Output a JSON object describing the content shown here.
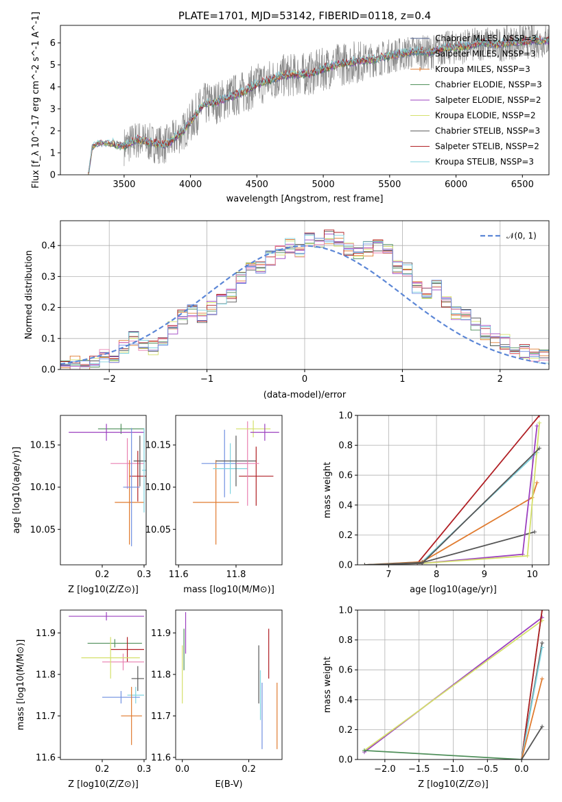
{
  "colors": [
    "#4a5b8a",
    "#5b86a6",
    "#e07b2f",
    "#4f8f5a",
    "#9b3fbf",
    "#d4e06a",
    "#555555",
    "#b01f24",
    "#7fd3df",
    "#e87fb0",
    "#6f8fe0",
    "#8fa58f"
  ],
  "chart_data": [
    {
      "type": "line",
      "title": "PLATE=1701, MJD=53142, FIBERID=0118, z=0.4",
      "xlabel": "wavelength [Angstrom, rest frame]",
      "ylabel": "Flux [f_λ 10^-17 erg cm^-2 s^-1 A^-1]",
      "xlim": [
        3020,
        6700
      ],
      "ylim": [
        0,
        6.8
      ],
      "xticks": [
        3500,
        4000,
        4500,
        5000,
        5500,
        6000,
        6500
      ],
      "yticks": [
        0,
        1,
        2,
        3,
        4,
        5,
        6
      ],
      "legend_position": "right",
      "legend": [
        {
          "name": "Chabrier MILES, N_SSP=3",
          "color": "#4a5b8a"
        },
        {
          "name": "Salpeter MILES, N_SSP=3",
          "color": "#5b86a6"
        },
        {
          "name": "Kroupa MILES, N_SSP=3",
          "color": "#e07b2f"
        },
        {
          "name": "Chabrier ELODIE, N_SSP=3",
          "color": "#4f8f5a"
        },
        {
          "name": "Salpeter ELODIE, N_SSP=2",
          "color": "#9b3fbf"
        },
        {
          "name": "Kroupa ELODIE, N_SSP=2",
          "color": "#d4e06a"
        },
        {
          "name": "Chabrier STELIB, N_SSP=3",
          "color": "#555555"
        },
        {
          "name": "Salpeter STELIB, N_SSP=2",
          "color": "#b01f24"
        },
        {
          "name": "Kroupa STELIB, N_SSP=3",
          "color": "#7fd3df"
        }
      ],
      "model_continuum": {
        "x": [
          3230,
          3260,
          3300,
          3400,
          3500,
          3600,
          3700,
          3800,
          3850,
          3950,
          4000,
          4100,
          4200,
          4300,
          4400,
          4500,
          4600,
          4700,
          4800,
          4900,
          5000,
          5100,
          5200,
          5300,
          5400,
          5500,
          5600,
          5700,
          5800,
          5900,
          6000,
          6100,
          6200,
          6300,
          6400,
          6500,
          6700
        ],
        "y": [
          0,
          1.25,
          1.45,
          1.42,
          1.3,
          1.6,
          1.45,
          1.35,
          1.5,
          2.0,
          2.4,
          3.2,
          3.3,
          3.55,
          3.75,
          4.1,
          4.3,
          4.5,
          4.55,
          4.6,
          4.8,
          5.0,
          5.1,
          5.2,
          5.25,
          5.4,
          5.5,
          5.6,
          5.55,
          5.75,
          5.8,
          5.85,
          6.0,
          5.9,
          6.0,
          6.05,
          6.1
        ]
      },
      "observed_data_note": "noisy observed spectrum shown in grey from 3500 to 6700 Å"
    },
    {
      "type": "line",
      "xlabel": "(data-model)/error",
      "ylabel": "Normed distribution",
      "xlim": [
        -2.5,
        2.5
      ],
      "ylim": [
        0,
        0.48
      ],
      "xticks": [
        -2,
        -1,
        0,
        1,
        2
      ],
      "yticks": [
        0.0,
        0.1,
        0.2,
        0.3,
        0.4
      ],
      "grid": true,
      "legend": [
        {
          "name": "𝒩(0, 1)",
          "style": "dashed",
          "color": "#5b86d6"
        }
      ],
      "histogram_bins": [
        -2.5,
        -2.4,
        -2.3,
        -2.2,
        -2.1,
        -2.0,
        -1.9,
        -1.8,
        -1.7,
        -1.6,
        -1.5,
        -1.4,
        -1.3,
        -1.2,
        -1.1,
        -1.0,
        -0.9,
        -0.8,
        -0.7,
        -0.6,
        -0.5,
        -0.4,
        -0.3,
        -0.2,
        -0.1,
        0.0,
        0.1,
        0.2,
        0.3,
        0.4,
        0.5,
        0.6,
        0.7,
        0.8,
        0.9,
        1.0,
        1.1,
        1.2,
        1.3,
        1.4,
        1.5,
        1.6,
        1.7,
        1.8,
        1.9,
        2.0,
        2.1,
        2.2,
        2.3,
        2.4,
        2.5
      ],
      "histogram_mean_heights": [
        0.015,
        0.02,
        0.018,
        0.03,
        0.04,
        0.045,
        0.07,
        0.1,
        0.08,
        0.07,
        0.095,
        0.13,
        0.17,
        0.19,
        0.175,
        0.2,
        0.22,
        0.24,
        0.3,
        0.34,
        0.33,
        0.36,
        0.38,
        0.4,
        0.38,
        0.42,
        0.41,
        0.43,
        0.42,
        0.39,
        0.38,
        0.39,
        0.4,
        0.38,
        0.33,
        0.32,
        0.27,
        0.25,
        0.27,
        0.22,
        0.18,
        0.17,
        0.15,
        0.12,
        0.1,
        0.09,
        0.07,
        0.06,
        0.05,
        0.04
      ]
    },
    {
      "type": "scatter",
      "xlabel": "Z [log10(Z/Z⊙)]",
      "ylabel": "age  [log10(age/yr)]",
      "xlim": [
        0.1,
        0.305
      ],
      "ylim": [
        10.008,
        10.185
      ],
      "xticks": [
        0.2,
        0.3
      ],
      "yticks": [
        10.05,
        10.1,
        10.15
      ],
      "errorbars": [
        {
          "x": 0.245,
          "xerr": 0.055,
          "y": 10.169,
          "yerr": 0.006,
          "color": "#4f8f5a"
        },
        {
          "x": 0.21,
          "xerr": 0.09,
          "y": 10.165,
          "yerr": 0.01,
          "color": "#9b3fbf"
        },
        {
          "x": 0.26,
          "xerr": 0.04,
          "y": 10.128,
          "yerr": 0.03,
          "color": "#e87fb0"
        },
        {
          "x": 0.29,
          "xerr": 0.015,
          "y": 10.131,
          "yerr": 0.03,
          "color": "#555555"
        },
        {
          "x": 0.285,
          "xerr": 0.02,
          "y": 10.113,
          "yerr": 0.03,
          "color": "#b01f24"
        },
        {
          "x": 0.265,
          "xerr": 0.035,
          "y": 10.082,
          "yerr": 0.05,
          "color": "#e07b2f"
        },
        {
          "x": 0.27,
          "xerr": 0.02,
          "y": 10.1,
          "yerr": 0.07,
          "color": "#6f8fe0"
        },
        {
          "x": 0.3,
          "xerr": 0.005,
          "y": 10.12,
          "yerr": 0.05,
          "color": "#7fd3df"
        }
      ]
    },
    {
      "type": "scatter",
      "xlabel": "mass [log10(M/M⊙)]",
      "xlim": [
        11.59,
        11.96
      ],
      "ylim": [
        10.008,
        10.185
      ],
      "xticks": [
        11.6,
        11.8
      ],
      "yticks": [
        10.05,
        10.1,
        10.15
      ],
      "errorbars": [
        {
          "x": 11.73,
          "xerr": 0.08,
          "y": 10.082,
          "yerr": 0.05,
          "color": "#e07b2f"
        },
        {
          "x": 11.76,
          "xerr": 0.08,
          "y": 10.128,
          "yerr": 0.04,
          "color": "#6f8fe0"
        },
        {
          "x": 11.78,
          "xerr": 0.06,
          "y": 10.122,
          "yerr": 0.03,
          "color": "#7fd3df"
        },
        {
          "x": 11.8,
          "xerr": 0.07,
          "y": 10.131,
          "yerr": 0.03,
          "color": "#555555"
        },
        {
          "x": 11.87,
          "xerr": 0.06,
          "y": 10.113,
          "yerr": 0.035,
          "color": "#b01f24"
        },
        {
          "x": 11.84,
          "xerr": 0.04,
          "y": 10.128,
          "yerr": 0.05,
          "color": "#e87fb0"
        },
        {
          "x": 11.86,
          "xerr": 0.06,
          "y": 10.169,
          "yerr": 0.01,
          "color": "#d4e06a"
        },
        {
          "x": 11.9,
          "xerr": 0.05,
          "y": 10.165,
          "yerr": 0.01,
          "color": "#9b3fbf"
        }
      ]
    },
    {
      "type": "line",
      "xlabel": "age  [log10(age/yr)]",
      "ylabel": "mass weight",
      "xlim": [
        6.35,
        10.35
      ],
      "ylim": [
        0,
        1.0
      ],
      "xticks": [
        7,
        8,
        9,
        10
      ],
      "yticks": [
        0.0,
        0.2,
        0.4,
        0.6,
        0.8,
        1.0
      ],
      "grid": true,
      "series": [
        {
          "x": [
            6.5,
            7.6,
            10.15
          ],
          "y": [
            0.0,
            0.01,
            1.0
          ],
          "color": "#b01f24"
        },
        {
          "x": [
            6.5,
            7.7,
            10.1
          ],
          "y": [
            0.0,
            0.02,
            0.75
          ],
          "color": "#7fd3df"
        },
        {
          "x": [
            6.5,
            7.7,
            10.0,
            10.1
          ],
          "y": [
            0.0,
            0.02,
            0.45,
            0.55
          ],
          "color": "#e07b2f"
        },
        {
          "x": [
            6.5,
            7.7,
            10.05
          ],
          "y": [
            0.0,
            0.015,
            0.22
          ],
          "color": "#555555"
        },
        {
          "x": [
            6.5,
            7.7,
            9.8,
            10.1
          ],
          "y": [
            0.0,
            0.01,
            0.07,
            0.93
          ],
          "color": "#9b3fbf"
        },
        {
          "x": [
            6.5,
            7.7,
            9.9,
            10.15
          ],
          "y": [
            0.0,
            0.01,
            0.06,
            0.95
          ],
          "color": "#d4e06a"
        },
        {
          "x": [
            6.5,
            7.7,
            10.15
          ],
          "y": [
            0.0,
            0.01,
            0.78
          ],
          "color": "#555555"
        }
      ]
    },
    {
      "type": "scatter",
      "xlabel": "Z [log10(Z/Z⊙)]",
      "ylabel": "mass [log10(M/M⊙)]",
      "xlim": [
        0.1,
        0.305
      ],
      "ylim": [
        11.595,
        11.955
      ],
      "xticks": [
        0.2,
        0.3
      ],
      "yticks": [
        11.6,
        11.7,
        11.8,
        11.9
      ],
      "errorbars": [
        {
          "x": 0.21,
          "xerr": 0.09,
          "y": 11.94,
          "yerr": 0.01,
          "color": "#9b3fbf"
        },
        {
          "x": 0.23,
          "xerr": 0.065,
          "y": 11.875,
          "yerr": 0.01,
          "color": "#4f8f5a"
        },
        {
          "x": 0.26,
          "xerr": 0.04,
          "y": 11.86,
          "yerr": 0.03,
          "color": "#b01f24"
        },
        {
          "x": 0.25,
          "xerr": 0.05,
          "y": 11.83,
          "yerr": 0.02,
          "color": "#e87fb0"
        },
        {
          "x": 0.22,
          "xerr": 0.07,
          "y": 11.84,
          "yerr": 0.05,
          "color": "#d4e06a"
        },
        {
          "x": 0.285,
          "xerr": 0.015,
          "y": 11.79,
          "yerr": 0.03,
          "color": "#555555"
        },
        {
          "x": 0.28,
          "xerr": 0.02,
          "y": 11.75,
          "yerr": 0.02,
          "color": "#7fd3df"
        },
        {
          "x": 0.245,
          "xerr": 0.045,
          "y": 11.745,
          "yerr": 0.015,
          "color": "#6f8fe0"
        },
        {
          "x": 0.27,
          "xerr": 0.025,
          "y": 11.7,
          "yerr": 0.07,
          "color": "#e07b2f"
        }
      ]
    },
    {
      "type": "scatter",
      "xlabel": "E(B-V)",
      "xlim": [
        -0.02,
        0.3
      ],
      "ylim": [
        11.595,
        11.955
      ],
      "xticks": [
        0.0,
        0.2
      ],
      "yticks": [
        11.6,
        11.7,
        11.8,
        11.9
      ],
      "errorbars": [
        {
          "x": 0.005,
          "y": 11.86,
          "yerr": 0.05,
          "color": "#4f8f5a"
        },
        {
          "x": 0.01,
          "y": 11.9,
          "yerr": 0.05,
          "color": "#9b3fbf"
        },
        {
          "x": 0.0,
          "y": 11.8,
          "yerr": 0.07,
          "color": "#d4e06a"
        },
        {
          "x": 0.23,
          "y": 11.8,
          "yerr": 0.07,
          "color": "#555555"
        },
        {
          "x": 0.235,
          "y": 11.75,
          "yerr": 0.06,
          "color": "#7fd3df"
        },
        {
          "x": 0.24,
          "y": 11.7,
          "yerr": 0.08,
          "color": "#6f8fe0"
        },
        {
          "x": 0.26,
          "y": 11.85,
          "yerr": 0.06,
          "color": "#b01f24"
        },
        {
          "x": 0.285,
          "y": 11.7,
          "yerr": 0.08,
          "color": "#e07b2f"
        }
      ]
    },
    {
      "type": "line",
      "xlabel": "Z [log10(Z/Z⊙)]",
      "ylabel": "mass weight",
      "xlim": [
        -2.4,
        0.4
      ],
      "ylim": [
        0,
        1.0
      ],
      "xticks": [
        -2.0,
        -1.5,
        -1.0,
        -0.5,
        0.0
      ],
      "yticks": [
        0.0,
        0.2,
        0.4,
        0.6,
        0.8,
        1.0
      ],
      "grid": true,
      "series": [
        {
          "x": [
            -2.3,
            0.3
          ],
          "y": [
            0.05,
            0.95
          ],
          "color": "#9b3fbf"
        },
        {
          "x": [
            -2.3,
            0.3
          ],
          "y": [
            0.06,
            0.93
          ],
          "color": "#d4e06a"
        },
        {
          "x": [
            -2.3,
            0.0,
            0.3
          ],
          "y": [
            0.06,
            0.0,
            1.0
          ],
          "color": "#4f8f5a"
        },
        {
          "x": [
            0.0,
            0.3
          ],
          "y": [
            0.0,
            1.0
          ],
          "color": "#b01f24"
        },
        {
          "x": [
            0.0,
            0.3
          ],
          "y": [
            0.0,
            0.78
          ],
          "color": "#555555"
        },
        {
          "x": [
            0.0,
            0.3
          ],
          "y": [
            0.0,
            0.75
          ],
          "color": "#7fd3df"
        },
        {
          "x": [
            0.0,
            0.3
          ],
          "y": [
            0.0,
            0.54
          ],
          "color": "#e07b2f"
        },
        {
          "x": [
            0.0,
            0.3
          ],
          "y": [
            0.0,
            0.22
          ],
          "color": "#555555"
        }
      ]
    }
  ]
}
